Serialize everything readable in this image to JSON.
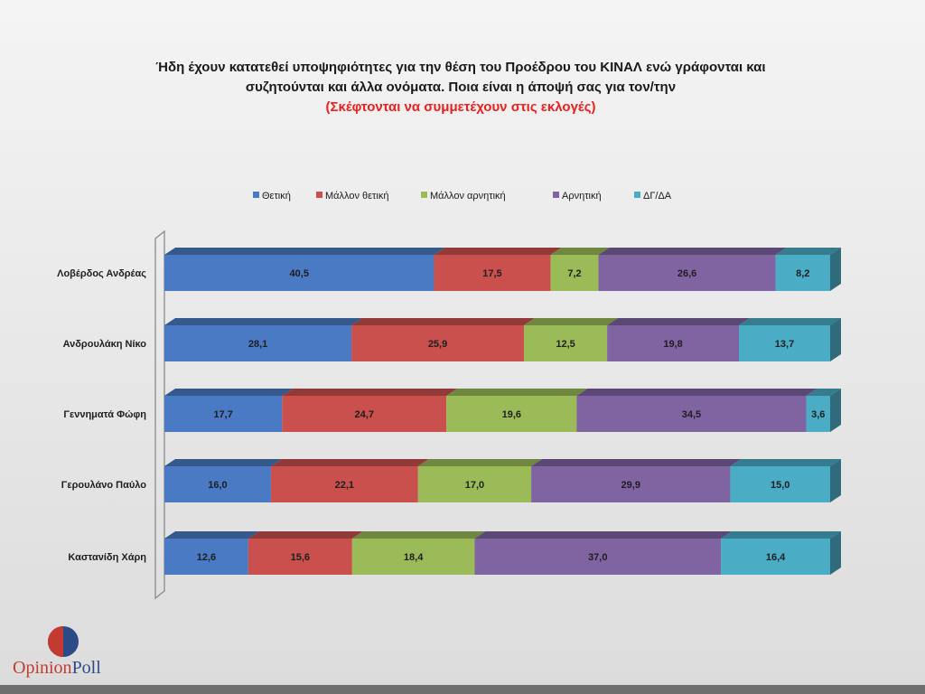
{
  "header": {
    "title_line1": "Ήδη έχουν κατατεθεί υποψηφιότητες για την θέση του Προέδρου του ΚΙΝΑΛ ενώ γράφονται και",
    "title_line2": "συζητούνται και άλλα ονόματα. Ποια είναι η άποψή σας για τον/την",
    "subtitle": "(Σκέφτονται να συμμετέχουν στις εκλογές)"
  },
  "brand": {
    "part1": "Opinion",
    "part2": "Poll"
  },
  "chart_data": {
    "type": "bar",
    "orientation": "horizontal",
    "stacked": true,
    "percent_stacked": true,
    "categories": [
      "Λοβέρδος Ανδρέας",
      "Ανδρουλάκη Νίκο",
      "Γεννηματά Φώφη",
      "Γερουλάνο Παύλο",
      "Καστανίδη Χάρη"
    ],
    "series": [
      {
        "name": "Θετική",
        "color": "#4a7ac4",
        "values": [
          40.5,
          28.1,
          17.7,
          16.0,
          12.6
        ],
        "labels": [
          "40,5",
          "28,1",
          "17,7",
          "16,0",
          "12,6"
        ]
      },
      {
        "name": "Μάλλον θετική",
        "color": "#c9504c",
        "values": [
          17.5,
          25.9,
          24.7,
          22.1,
          15.6
        ],
        "labels": [
          "17,5",
          "25,9",
          "24,7",
          "22,1",
          "15,6"
        ]
      },
      {
        "name": "Μάλλον αρνητική",
        "color": "#9bbb59",
        "values": [
          7.2,
          12.5,
          19.6,
          17.0,
          18.4
        ],
        "labels": [
          "7,2",
          "12,5",
          "19,6",
          "17,0",
          "18,4"
        ]
      },
      {
        "name": "Αρνητική",
        "color": "#8064a2",
        "values": [
          26.6,
          19.8,
          34.5,
          29.9,
          37.0
        ],
        "labels": [
          "26,6",
          "19,8",
          "34,5",
          "29,9",
          "37,0"
        ]
      },
      {
        "name": "ΔΓ/ΔΑ",
        "color": "#4bacc6",
        "values": [
          8.2,
          13.7,
          3.6,
          15.0,
          16.4
        ],
        "labels": [
          "8,2",
          "13,7",
          "3,6",
          "15,0",
          "16,4"
        ]
      }
    ],
    "legend_position": "top",
    "grid": false,
    "style": "3d"
  }
}
